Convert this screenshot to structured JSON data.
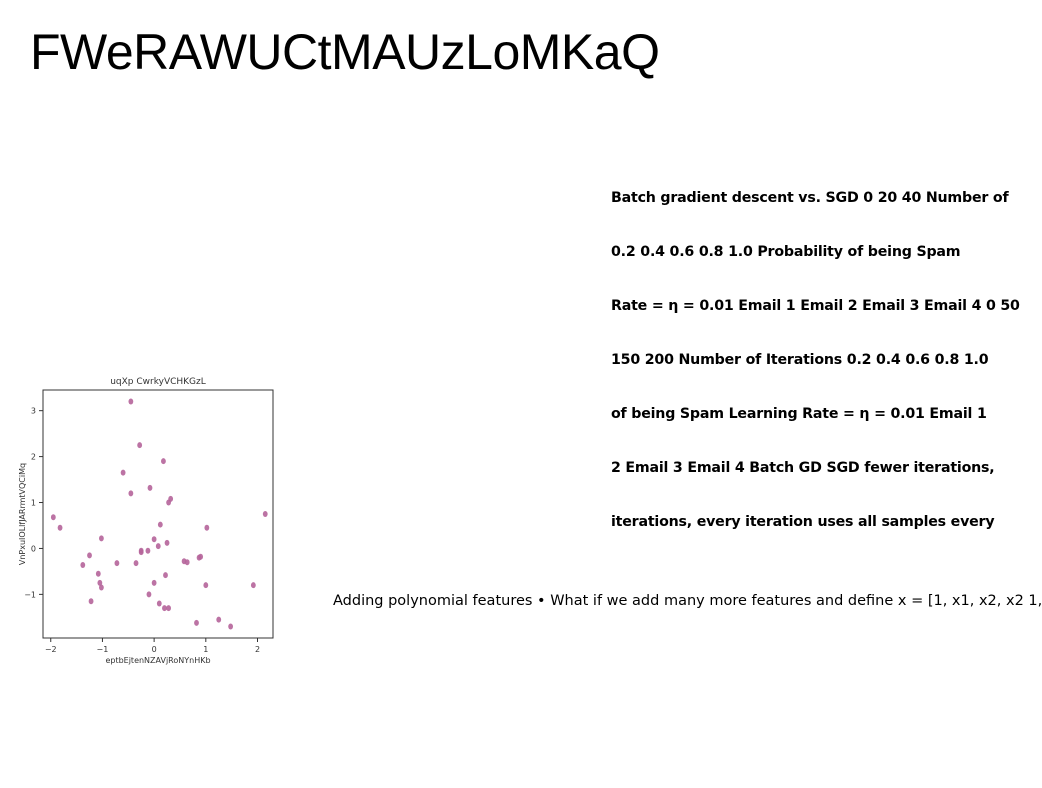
{
  "slide": {
    "title": "FWeRAWUCtMAUzLoMKaQ",
    "bold_block_lines": [
      "Batch gradient descent vs. SGD 0 20 40 Number of",
      "0.2 0.4 0.6 0.8 1.0 Probability of being Spam",
      "Rate = η = 0.01 Email 1 Email 2 Email 3 Email 4 0 50",
      "150 200 Number of Iterations 0.2 0.4 0.6 0.8 1.0",
      "of being Spam Learning Rate = η = 0.01 Email 1",
      "2 Email 3 Email 4 Batch GD SGD fewer iterations,",
      "iterations, every iteration uses all samples every"
    ],
    "body_line": "Adding polynomial features • What if we add many more features and define x = [1, x1, x2, x2 1,"
  },
  "colors": {
    "point": "#b5649a",
    "axis": "#333333"
  },
  "chart_data": {
    "type": "scatter",
    "title": "uqXp CwrkyVCHKGzL",
    "xlabel": "eptbEjtenNZAVjRoNYnHKb",
    "ylabel": "VnPxuIOLlfJARrmtVQCiMq",
    "xlim": [
      -2.15,
      2.3
    ],
    "ylim": [
      -1.95,
      3.45
    ],
    "xticks": [
      "−2",
      "−1",
      "0",
      "1",
      "2"
    ],
    "xtick_values": [
      -2,
      -1,
      0,
      1,
      2
    ],
    "yticks": [
      "−1",
      "0",
      "1",
      "2",
      "3"
    ],
    "ytick_values": [
      -1,
      0,
      1,
      2,
      3
    ],
    "grid": false,
    "points": [
      [
        -0.45,
        3.2
      ],
      [
        -0.28,
        2.25
      ],
      [
        0.18,
        1.9
      ],
      [
        -0.6,
        1.65
      ],
      [
        -0.45,
        1.2
      ],
      [
        -0.08,
        1.32
      ],
      [
        0.32,
        1.08
      ],
      [
        0.28,
        1.0
      ],
      [
        0.12,
        0.52
      ],
      [
        1.02,
        0.45
      ],
      [
        -1.95,
        0.68
      ],
      [
        -1.82,
        0.45
      ],
      [
        2.15,
        0.75
      ],
      [
        -1.02,
        0.22
      ],
      [
        0.0,
        0.2
      ],
      [
        0.25,
        0.12
      ],
      [
        0.08,
        0.05
      ],
      [
        -0.25,
        -0.05
      ],
      [
        -0.25,
        -0.08
      ],
      [
        -0.12,
        -0.05
      ],
      [
        -1.25,
        -0.15
      ],
      [
        -0.35,
        -0.32
      ],
      [
        -0.72,
        -0.32
      ],
      [
        -1.38,
        -0.36
      ],
      [
        0.58,
        -0.28
      ],
      [
        0.64,
        -0.3
      ],
      [
        0.9,
        -0.18
      ],
      [
        0.87,
        -0.2
      ],
      [
        -1.08,
        -0.55
      ],
      [
        0.22,
        -0.58
      ],
      [
        -1.05,
        -0.75
      ],
      [
        -1.02,
        -0.85
      ],
      [
        0.0,
        -0.75
      ],
      [
        1.0,
        -0.8
      ],
      [
        1.92,
        -0.8
      ],
      [
        -0.1,
        -1.0
      ],
      [
        -1.22,
        -1.15
      ],
      [
        0.1,
        -1.2
      ],
      [
        0.2,
        -1.3
      ],
      [
        0.28,
        -1.3
      ],
      [
        1.25,
        -1.55
      ],
      [
        0.82,
        -1.62
      ],
      [
        1.48,
        -1.7
      ]
    ]
  }
}
